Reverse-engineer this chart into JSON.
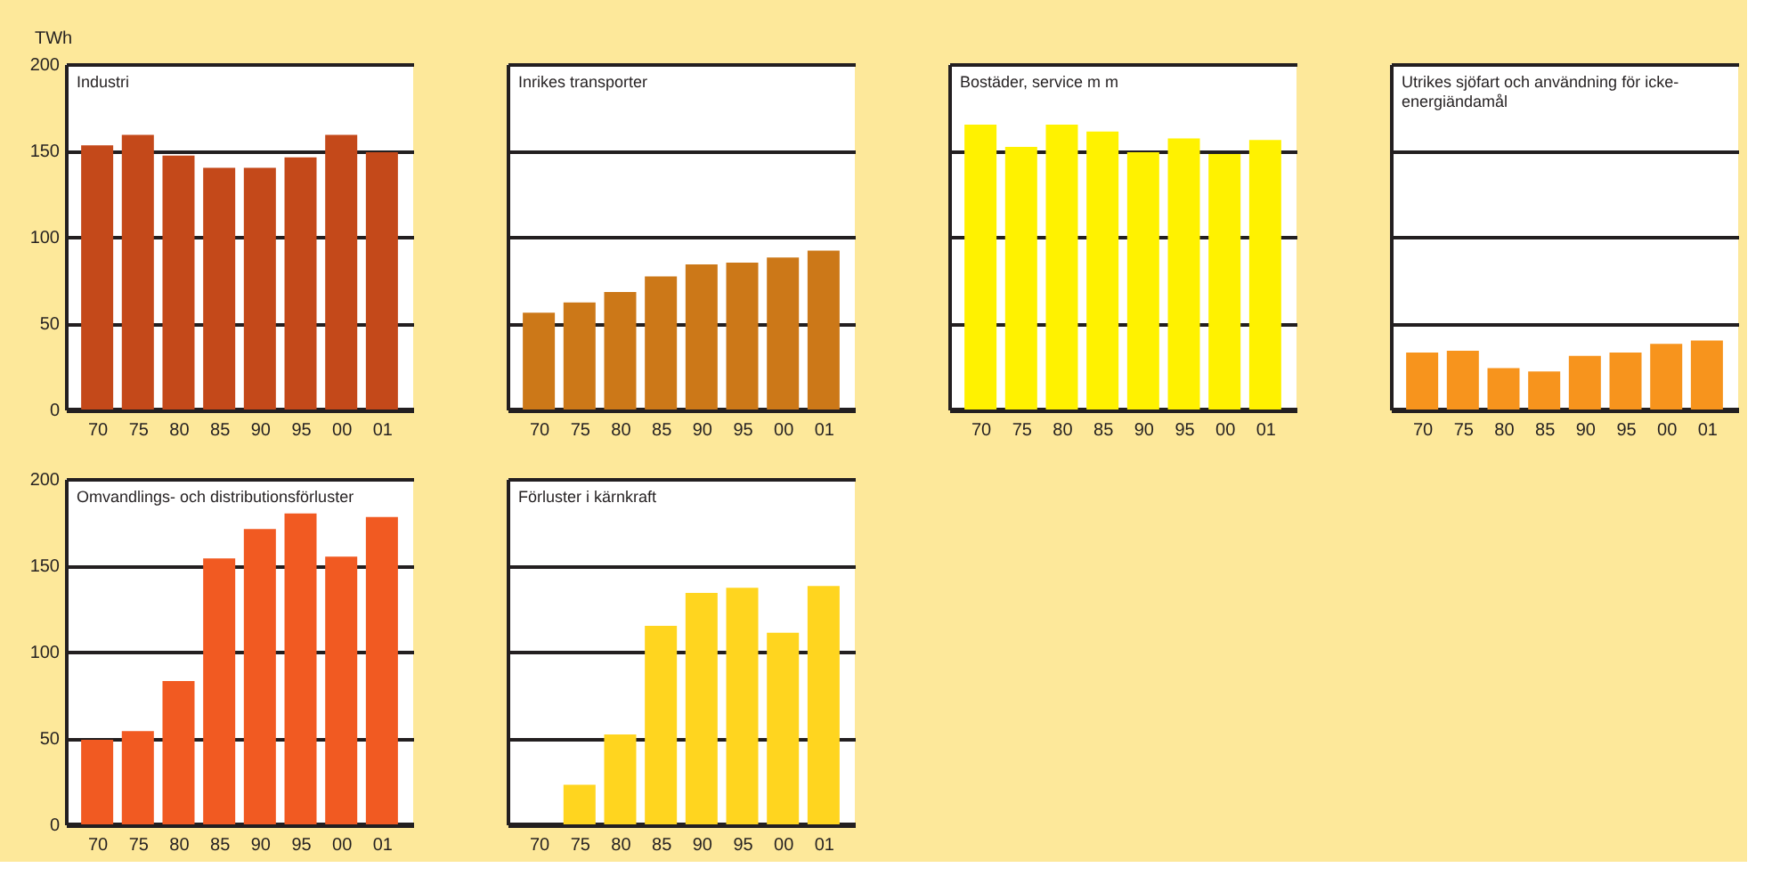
{
  "chart_data": [
    {
      "type": "bar",
      "title": "Industri",
      "ylabel": "TWh",
      "categories": [
        "70",
        "75",
        "80",
        "85",
        "90",
        "95",
        "00",
        "01"
      ],
      "values": [
        153,
        159,
        147,
        140,
        140,
        146,
        159,
        149
      ],
      "color": "#c4491a",
      "ylim": [
        0,
        200
      ],
      "yticks": [
        0,
        50,
        100,
        150,
        200
      ],
      "grid": "y"
    },
    {
      "type": "bar",
      "title": "Inrikes transporter",
      "categories": [
        "70",
        "75",
        "80",
        "85",
        "90",
        "95",
        "00",
        "01"
      ],
      "values": [
        56,
        62,
        68,
        77,
        84,
        85,
        88,
        92
      ],
      "color": "#cc7818",
      "ylim": [
        0,
        200
      ],
      "yticks": [
        0,
        50,
        100,
        150,
        200
      ],
      "grid": "y",
      "tick_labels": "x"
    },
    {
      "type": "bar",
      "title": "Bostäder, service m m",
      "categories": [
        "70",
        "75",
        "80",
        "85",
        "90",
        "95",
        "00",
        "01"
      ],
      "values": [
        165,
        152,
        165,
        161,
        149,
        157,
        148,
        156
      ],
      "color": "#fff200",
      "ylim": [
        0,
        200
      ],
      "yticks": [
        0,
        50,
        100,
        150,
        200
      ],
      "grid": "y",
      "tick_labels": "x"
    },
    {
      "type": "bar",
      "title": "Utrikes sjöfart och användning för icke-energiändamål",
      "categories": [
        "70",
        "75",
        "80",
        "85",
        "90",
        "95",
        "00",
        "01"
      ],
      "values": [
        33,
        34,
        24,
        22,
        31,
        33,
        38,
        40
      ],
      "color": "#f7941d",
      "ylim": [
        0,
        200
      ],
      "yticks": [
        0,
        50,
        100,
        150,
        200
      ],
      "grid": "y",
      "tick_labels": "x"
    },
    {
      "type": "bar",
      "title": "Omvandlings- och distributionsförluster",
      "categories": [
        "70",
        "75",
        "80",
        "85",
        "90",
        "95",
        "00",
        "01"
      ],
      "values": [
        49,
        54,
        83,
        154,
        171,
        180,
        155,
        178
      ],
      "color": "#f15a22",
      "ylim": [
        0,
        200
      ],
      "yticks": [
        0,
        50,
        100,
        150,
        200
      ],
      "grid": "y"
    },
    {
      "type": "bar",
      "title": "Förluster i kärnkraft",
      "categories": [
        "70",
        "75",
        "80",
        "85",
        "90",
        "95",
        "00",
        "01"
      ],
      "values": [
        0,
        23,
        52,
        115,
        134,
        137,
        111,
        138
      ],
      "color": "#ffd51f",
      "ylim": [
        0,
        200
      ],
      "yticks": [
        0,
        50,
        100,
        150,
        200
      ],
      "grid": "y",
      "tick_labels": "x"
    }
  ]
}
